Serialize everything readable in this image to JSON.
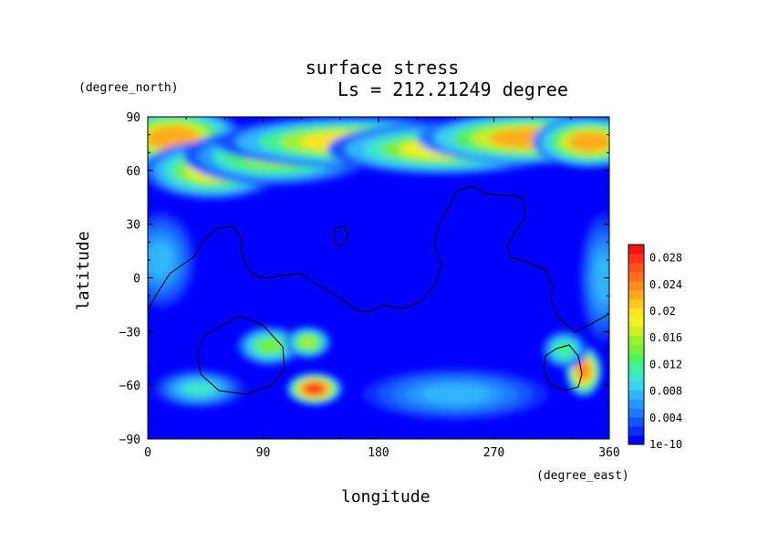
{
  "chart_data": {
    "type": "heatmap",
    "title": "surface stress",
    "subtitle": "Ls = 212.21249 degree",
    "xlabel": "longitude",
    "ylabel": "latitude",
    "x_unit": "(degree_east)",
    "y_unit": "(degree_north)",
    "xlim": [
      0,
      360
    ],
    "ylim": [
      -90,
      90
    ],
    "x_ticks": [
      "0",
      "90",
      "180",
      "270",
      "360"
    ],
    "y_ticks": [
      "-90",
      "-60",
      "-30",
      "0",
      "30",
      "60",
      "90"
    ],
    "colorbar": {
      "min": 0,
      "max": 0.03,
      "tick_labels": [
        "1e-10",
        "0.004",
        "0.008",
        "0.012",
        "0.016",
        "0.02",
        "0.024",
        "0.028"
      ],
      "tick_values": [
        0,
        0.004,
        0.008,
        0.012,
        0.016,
        0.02,
        0.024,
        0.028
      ],
      "colors": [
        "#0000ff",
        "#0a2cff",
        "#1452ff",
        "#1e78ff",
        "#2896ff",
        "#32b4ff",
        "#3cd2f0",
        "#3ce6c8",
        "#3cf09c",
        "#50f064",
        "#78f03c",
        "#a0f032",
        "#c8f028",
        "#f0f028",
        "#ffe61e",
        "#ffc81e",
        "#ffaa1e",
        "#ff8c1e",
        "#ff6e1e",
        "#ff501e",
        "#ff321e",
        "#f01414"
      ]
    },
    "hotspots": [
      {
        "lon": 20,
        "lat": 78,
        "value": 0.022,
        "lon_width": 30,
        "lat_width": 10
      },
      {
        "lon": 50,
        "lat": 60,
        "value": 0.018,
        "lon_width": 30,
        "lat_width": 9
      },
      {
        "lon": 100,
        "lat": 68,
        "value": 0.016,
        "lon_width": 40,
        "lat_width": 9
      },
      {
        "lon": 160,
        "lat": 76,
        "value": 0.02,
        "lon_width": 60,
        "lat_width": 8
      },
      {
        "lon": 230,
        "lat": 72,
        "value": 0.018,
        "lon_width": 50,
        "lat_width": 8
      },
      {
        "lon": 300,
        "lat": 78,
        "value": 0.022,
        "lon_width": 50,
        "lat_width": 8
      },
      {
        "lon": 345,
        "lat": 76,
        "value": 0.022,
        "lon_width": 25,
        "lat_width": 8
      },
      {
        "lon": 95,
        "lat": -38,
        "value": 0.014,
        "lon_width": 14,
        "lat_width": 6
      },
      {
        "lon": 125,
        "lat": -36,
        "value": 0.016,
        "lon_width": 10,
        "lat_width": 5
      },
      {
        "lon": 130,
        "lat": -62,
        "value": 0.028,
        "lon_width": 12,
        "lat_width": 5
      },
      {
        "lon": 340,
        "lat": -52,
        "value": 0.024,
        "lon_width": 8,
        "lat_width": 8
      },
      {
        "lon": 325,
        "lat": -40,
        "value": 0.012,
        "lon_width": 10,
        "lat_width": 6
      },
      {
        "lon": 10,
        "lat": 10,
        "value": 0.008,
        "lon_width": 15,
        "lat_width": 15
      },
      {
        "lon": 40,
        "lat": -62,
        "value": 0.01,
        "lon_width": 20,
        "lat_width": 6
      },
      {
        "lon": 240,
        "lat": -65,
        "value": 0.008,
        "lon_width": 40,
        "lat_width": 8
      },
      {
        "lon": 355,
        "lat": 0,
        "value": 0.008,
        "lon_width": 10,
        "lat_width": 20
      }
    ]
  }
}
